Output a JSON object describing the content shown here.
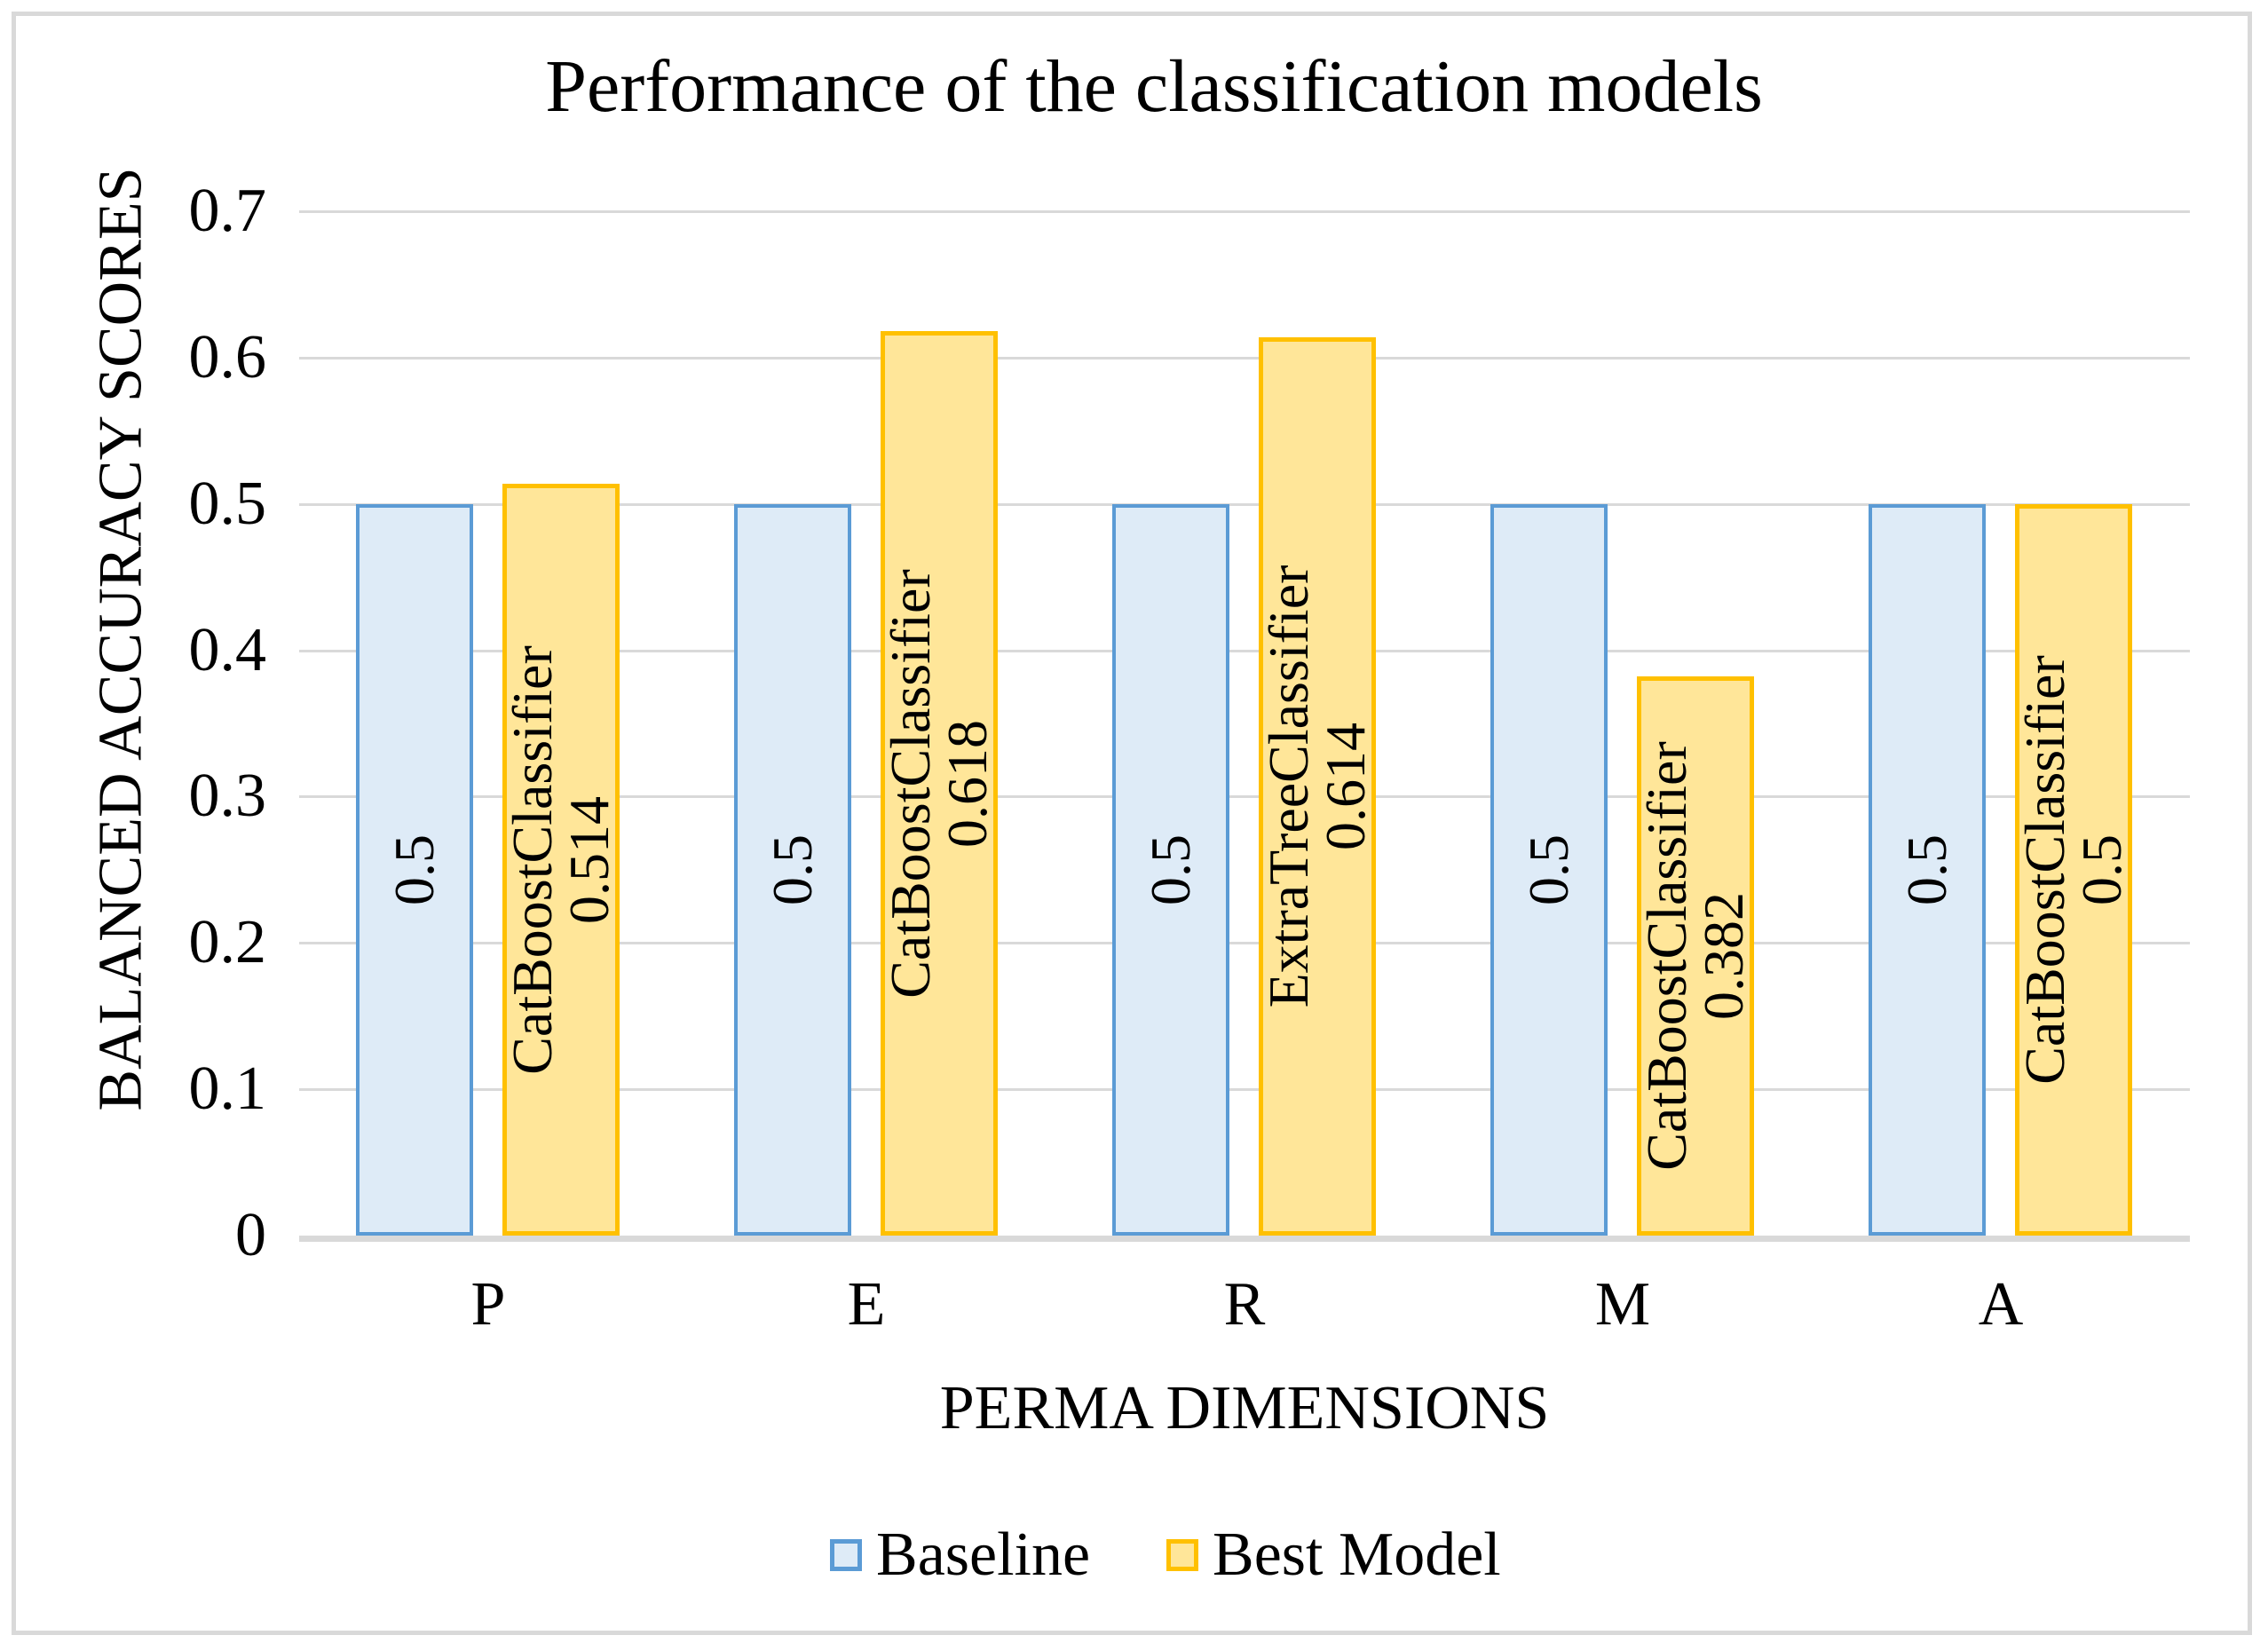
{
  "chart_data": {
    "type": "bar",
    "title": "Performance of the classification models",
    "xlabel": "PERMA DIMENSIONS",
    "ylabel": "BALANCED ACCURACY SCORES",
    "categories": [
      "P",
      "E",
      "R",
      "M",
      "A"
    ],
    "yticks": [
      "0",
      "0.1",
      "0.2",
      "0.3",
      "0.4",
      "0.5",
      "0.6",
      "0.7"
    ],
    "ylim": [
      0,
      0.7
    ],
    "ytick_step": 0.1,
    "grid": true,
    "legend_position": "bottom",
    "series": [
      {
        "name": "Baseline",
        "values": [
          0.5,
          0.5,
          0.5,
          0.5,
          0.5
        ],
        "bar_labels": [
          [
            "0.5"
          ],
          [
            "0.5"
          ],
          [
            "0.5"
          ],
          [
            "0.5"
          ],
          [
            "0.5"
          ]
        ],
        "fill": "#DEEBF7",
        "border": "#5B9BD5"
      },
      {
        "name": "Best Model",
        "values": [
          0.514,
          0.618,
          0.614,
          0.382,
          0.5
        ],
        "bar_labels": [
          [
            "CatBoostClassifier",
            "0.514"
          ],
          [
            "CatBoostClassifier",
            "0.618"
          ],
          [
            "ExtraTreeClassifier",
            "0.614"
          ],
          [
            "CatBoostClassifier",
            "0.382"
          ],
          [
            "CatBoostClassifier",
            "0.5"
          ]
        ],
        "fill": "#FFE699",
        "border": "#FFC000"
      }
    ],
    "best_models_per_category": [
      "CatBoostClassifier",
      "CatBoostClassifier",
      "ExtraTreeClassifier",
      "CatBoostClassifier",
      "CatBoostClassifier"
    ]
  },
  "colors": {
    "gridline": "#D9D9D9",
    "axis_line": "#D9D9D9",
    "frame_border": "#D9D9D9",
    "text": "#000000",
    "baseline_fill": "#DEEBF7",
    "baseline_border": "#5B9BD5",
    "best_model_fill": "#FFE699",
    "best_model_border": "#FFC000"
  }
}
